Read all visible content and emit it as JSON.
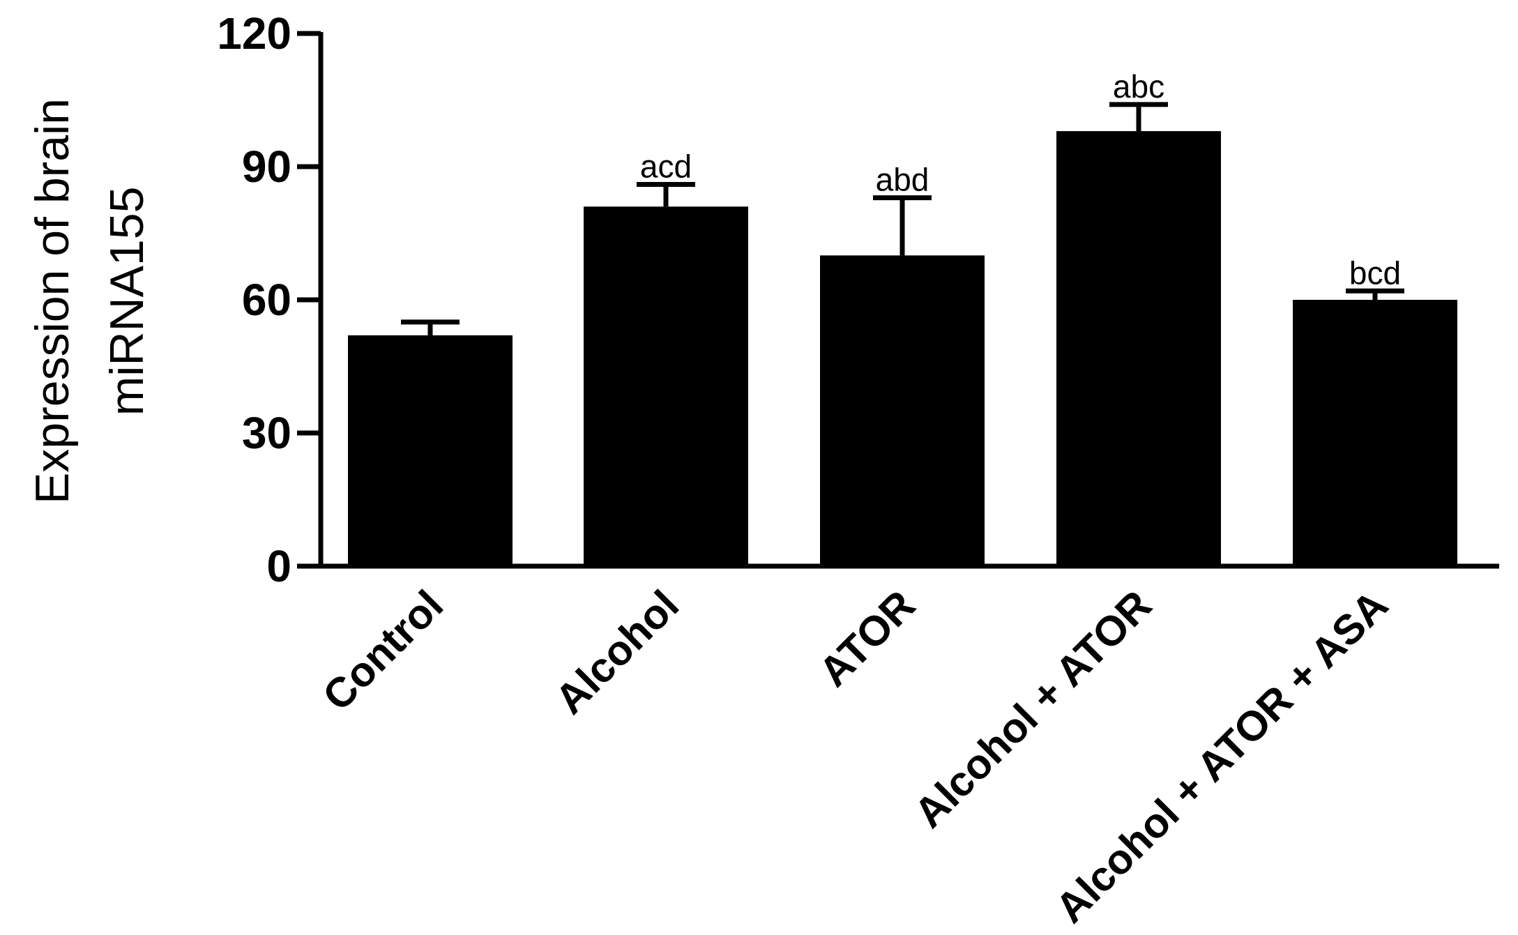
{
  "chart_data": {
    "type": "bar",
    "title": "",
    "xlabel": "",
    "ylabel_lines": [
      "Expression of brain",
      "miRNA155"
    ],
    "ylim": [
      0,
      120
    ],
    "yticks": [
      "0",
      "30",
      "60",
      "90",
      "120"
    ],
    "categories": [
      "Control",
      "Alcohol",
      "ATOR",
      "Alcohol + ATOR",
      "Alcohol + ATOR + ASA"
    ],
    "values": [
      52,
      81,
      70,
      98,
      60
    ],
    "error_upper": [
      55,
      86,
      83,
      104,
      62
    ],
    "significance_labels": [
      "",
      "acd",
      "abd",
      "abc",
      "bcd"
    ],
    "bar_color": "#000000",
    "grid": false,
    "legend": "none"
  }
}
